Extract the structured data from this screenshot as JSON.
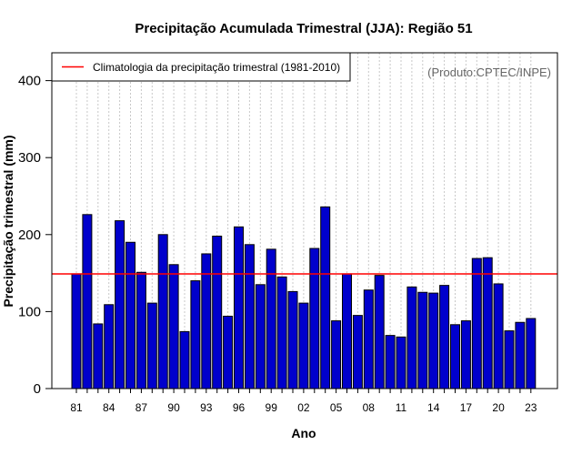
{
  "chart_data": {
    "type": "bar",
    "title": "Precipitação Acumulada Trimestral (JJA): Região 51",
    "xlabel": "Ano",
    "ylabel": "Precipitação trimestral (mm)",
    "ylim": [
      0,
      435
    ],
    "yticks": [
      0,
      100,
      200,
      300,
      400
    ],
    "xtick_labels": [
      "81",
      "84",
      "87",
      "90",
      "93",
      "96",
      "99",
      "02",
      "05",
      "08",
      "11",
      "14",
      "17",
      "20",
      "23"
    ],
    "categories": [
      "1981",
      "1982",
      "1983",
      "1984",
      "1985",
      "1986",
      "1987",
      "1988",
      "1989",
      "1990",
      "1991",
      "1992",
      "1993",
      "1994",
      "1995",
      "1996",
      "1997",
      "1998",
      "1999",
      "2000",
      "2001",
      "2002",
      "2003",
      "2004",
      "2005",
      "2006",
      "2007",
      "2008",
      "2009",
      "2010",
      "2011",
      "2012",
      "2013",
      "2014",
      "2015",
      "2016",
      "2017",
      "2018",
      "2019",
      "2020",
      "2021",
      "2022",
      "2023"
    ],
    "values": [
      149,
      226,
      84,
      109,
      218,
      190,
      151,
      111,
      200,
      161,
      74,
      140,
      175,
      198,
      94,
      210,
      187,
      135,
      181,
      145,
      126,
      111,
      182,
      236,
      88,
      149,
      95,
      128,
      147,
      69,
      67,
      132,
      125,
      124,
      134,
      83,
      88,
      169,
      170,
      136,
      75,
      86,
      91
    ],
    "climatology": 149,
    "legend": "Climatologia da precipitação trimestral (1981-2010)",
    "legend_position": "top-left",
    "source_note": "(Produto:CPTEC/INPE)",
    "grid": "vertical dotted",
    "colors": {
      "bar_fill": "#0000cc",
      "bar_edge": "#000000",
      "climatology_line": "#ff0000",
      "grid": "#c8c8c8",
      "source_text": "#666666"
    }
  }
}
